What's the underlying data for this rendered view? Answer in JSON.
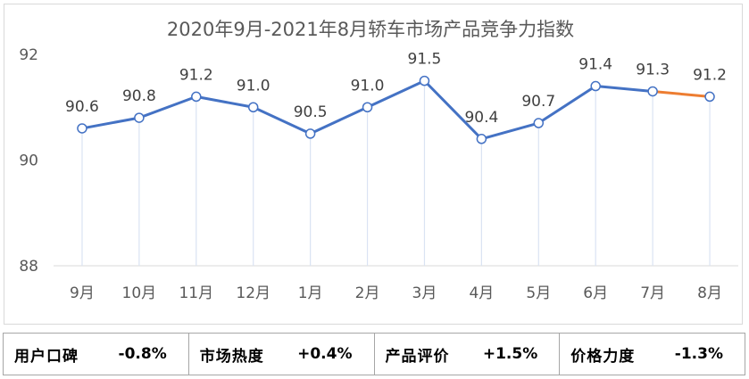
{
  "chart_data": {
    "type": "line",
    "title": "2020年9月-2021年8月轿车市场产品竞争力指数",
    "categories": [
      "9月",
      "10月",
      "11月",
      "12月",
      "1月",
      "2月",
      "3月",
      "4月",
      "5月",
      "6月",
      "7月",
      "8月"
    ],
    "values": [
      90.6,
      90.8,
      91.2,
      91.0,
      90.5,
      91.0,
      91.5,
      90.4,
      90.7,
      91.4,
      91.3,
      91.2
    ],
    "data_labels": [
      "90.6",
      "90.8",
      "91.2",
      "91.0",
      "90.5",
      "91.0",
      "91.5",
      "90.4",
      "90.7",
      "91.4",
      "91.3",
      "91.2"
    ],
    "y_ticks": [
      "92",
      "90",
      "88"
    ],
    "ylim": [
      88,
      92
    ],
    "grid": false,
    "line_color": "#4472c4",
    "last_segment_color": "#ed7d31",
    "drop_line_color": "#dae3f3"
  },
  "metrics": [
    {
      "label": "用户口碑",
      "value": "-0.8%"
    },
    {
      "label": "市场热度",
      "value": "+0.4%"
    },
    {
      "label": "产品评价",
      "value": "+1.5%"
    },
    {
      "label": "价格力度",
      "value": "-1.3%"
    }
  ]
}
